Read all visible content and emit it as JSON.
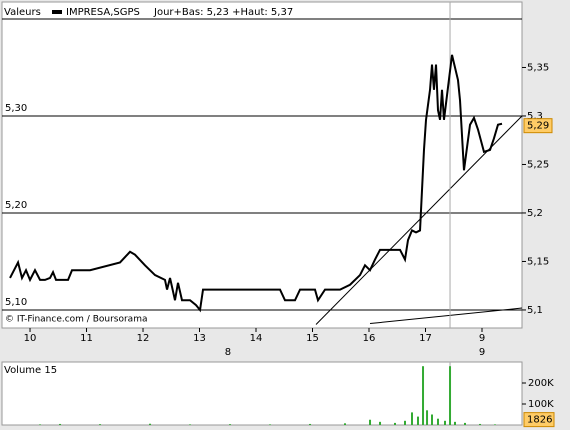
{
  "header": {
    "label": "Valeurs",
    "info": "Jour+Bas: 5,23 +Haut: 5,37",
    "credit": "© IT-Finance.com / Boursorama"
  },
  "chart_data": [
    {
      "type": "line",
      "series": [
        {
          "name": "IMPRESA,SGPS",
          "color": "#000000",
          "x": [
            -0.354,
            -0.212,
            -0.142,
            -0.071,
            0,
            0.088,
            0.177,
            0.265,
            0.354,
            0.407,
            0.46,
            0.531,
            0.673,
            0.743,
            1.062,
            1.593,
            1.77,
            1.858,
            2.035,
            2.212,
            2.389,
            2.425,
            2.478,
            2.566,
            2.619,
            2.69,
            2.832,
            2.938,
            3.009,
            3.062,
            3.717,
            4.425,
            4.513,
            4.69,
            4.779,
            5.044,
            5.097,
            5.221,
            5.487,
            5.664,
            5.841,
            5.929,
            6.018,
            6.106,
            6.195,
            6.549,
            6.637,
            6.69,
            6.761,
            6.832,
            6.903,
            6.973,
            7.009,
            7.08,
            7.115,
            7.15,
            7.186,
            7.221,
            7.257,
            7.292,
            7.327,
            7.469,
            7.575,
            7.611,
            7.681,
            7.788,
            7.858,
            7.929,
            8.035,
            8.142,
            8.212,
            8.283,
            8.354
          ],
          "values": [
            5.133,
            5.149,
            5.133,
            5.141,
            5.131,
            5.141,
            5.131,
            5.131,
            5.133,
            5.139,
            5.131,
            5.131,
            5.131,
            5.141,
            5.141,
            5.149,
            5.16,
            5.157,
            5.146,
            5.136,
            5.131,
            5.121,
            5.133,
            5.11,
            5.128,
            5.11,
            5.11,
            5.105,
            5.1,
            5.121,
            5.121,
            5.121,
            5.11,
            5.11,
            5.121,
            5.121,
            5.11,
            5.121,
            5.121,
            5.126,
            5.136,
            5.146,
            5.141,
            5.152,
            5.162,
            5.162,
            5.152,
            5.172,
            5.182,
            5.18,
            5.182,
            5.265,
            5.296,
            5.327,
            5.353,
            5.327,
            5.353,
            5.306,
            5.296,
            5.327,
            5.296,
            5.363,
            5.337,
            5.316,
            5.244,
            5.291,
            5.298,
            5.286,
            5.263,
            5.265,
            5.277,
            5.291,
            5.292
          ]
        }
      ],
      "xlim": [
        -0.496,
        8.708
      ],
      "xticks": [
        {
          "value": 0,
          "label": "10"
        },
        {
          "value": 1,
          "label": "11"
        },
        {
          "value": 2,
          "label": "12"
        },
        {
          "value": 3,
          "label": "13"
        },
        {
          "value": 4,
          "label": "14"
        },
        {
          "value": 5,
          "label": "15"
        },
        {
          "value": 6,
          "label": "16"
        },
        {
          "value": 7,
          "label": "17"
        },
        {
          "value": 8,
          "label": "9"
        }
      ],
      "month_labels": [
        {
          "value": 3.504,
          "label": "8"
        },
        {
          "value": 8,
          "label": "9"
        }
      ],
      "ylim": [
        5.0814,
        5.4175
      ],
      "yticks": [
        {
          "value": 5.35,
          "label": "5,35"
        },
        {
          "value": 5.3,
          "label": "5,3"
        },
        {
          "value": 5.25,
          "label": "5,25"
        },
        {
          "value": 5.2,
          "label": "5,2"
        },
        {
          "value": 5.15,
          "label": "5,15"
        },
        {
          "value": 5.1,
          "label": "5,1"
        }
      ],
      "levels": [
        5.4,
        {
          "value": 5.3,
          "label": "5,30"
        },
        {
          "value": 5.2,
          "label": "5,20"
        },
        {
          "value": 5.1,
          "label": "5,10"
        }
      ],
      "trendlines": [
        [
          [
            5.062,
            5.085
          ],
          [
            8.708,
            5.3
          ]
        ],
        [
          [
            6.018,
            5.086
          ],
          [
            8.708,
            5.102
          ]
        ]
      ],
      "marker_x": 7.434,
      "last": {
        "value": 5.29,
        "label": "5,29"
      }
    },
    {
      "type": "bar",
      "title": "Volume 15",
      "color": "#33aa33",
      "x": [
        0.177,
        0.531,
        1.239,
        2.124,
        2.832,
        3.54,
        4.248,
        4.956,
        5.575,
        6.018,
        6.195,
        6.46,
        6.637,
        6.761,
        6.867,
        6.956,
        7.027,
        7.115,
        7.221,
        7.345,
        7.434,
        7.522,
        7.699,
        7.965,
        8.23
      ],
      "values": [
        3000,
        5000,
        4000,
        6000,
        3000,
        4000,
        3000,
        5000,
        8000,
        25000,
        15000,
        10000,
        20000,
        60000,
        40000,
        280000,
        70000,
        50000,
        30000,
        20000,
        280000,
        15000,
        10000,
        5000,
        3000
      ],
      "xlim": [
        -0.496,
        8.708
      ],
      "ylim": [
        0,
        300000
      ],
      "yticks": [
        {
          "value": 100000,
          "label": "100K"
        },
        {
          "value": 200000,
          "label": "200K"
        }
      ],
      "marker_x": 7.434,
      "last": {
        "value": 1826,
        "label": "1826"
      }
    }
  ]
}
